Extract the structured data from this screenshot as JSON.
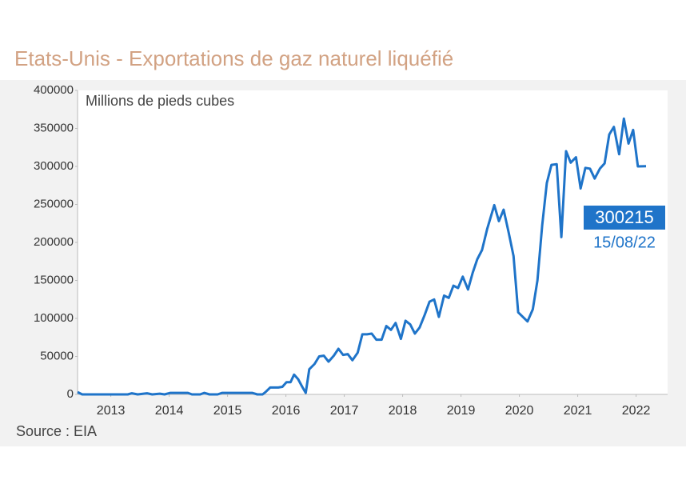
{
  "chart_data": {
    "type": "line",
    "title": "Etats-Unis - Exportations de gaz naturel liquéfié",
    "y_label": "Millions de pieds cubes",
    "source": "Source : EIA",
    "annotation_date": "15/08/22",
    "xlim": [
      2012.93,
      2023.04
    ],
    "xticks": [
      {
        "value": 2013.5,
        "label": "2013"
      },
      {
        "value": 2014.5,
        "label": "2014"
      },
      {
        "value": 2015.5,
        "label": "2015"
      },
      {
        "value": 2016.5,
        "label": "2016"
      },
      {
        "value": 2017.5,
        "label": "2017"
      },
      {
        "value": 2018.5,
        "label": "2018"
      },
      {
        "value": 2019.5,
        "label": "2019"
      },
      {
        "value": 2020.5,
        "label": "2020"
      },
      {
        "value": 2021.5,
        "label": "2021"
      },
      {
        "value": 2022.5,
        "label": "2022"
      }
    ],
    "ylim": [
      0,
      400000
    ],
    "yticks": [
      0,
      50000,
      100000,
      150000,
      200000,
      250000,
      300000,
      350000,
      400000
    ],
    "x": [
      2012.93,
      2013.01,
      2013.79,
      2013.86,
      2013.96,
      2014.12,
      2014.21,
      2014.34,
      2014.42,
      2014.52,
      2014.82,
      2014.89,
      2015.03,
      2015.1,
      2015.19,
      2015.33,
      2015.41,
      2015.92,
      2016.01,
      2016.1,
      2016.15,
      2016.23,
      2016.37,
      2016.44,
      2016.51,
      2016.58,
      2016.64,
      2016.71,
      2016.78,
      2016.84,
      2016.9,
      2016.99,
      2017.07,
      2017.15,
      2017.23,
      2017.32,
      2017.4,
      2017.48,
      2017.56,
      2017.64,
      2017.73,
      2017.81,
      2017.89,
      2017.97,
      2018.05,
      2018.14,
      2018.22,
      2018.3,
      2018.38,
      2018.47,
      2018.55,
      2018.63,
      2018.71,
      2018.79,
      2018.88,
      2018.96,
      2019.04,
      2019.12,
      2019.21,
      2019.29,
      2019.37,
      2019.45,
      2019.53,
      2019.62,
      2019.7,
      2019.78,
      2019.86,
      2019.95,
      2020.07,
      2020.15,
      2020.23,
      2020.32,
      2020.4,
      2020.48,
      2020.64,
      2020.73,
      2020.81,
      2020.89,
      2020.97,
      2021.05,
      2021.14,
      2021.22,
      2021.3,
      2021.38,
      2021.47,
      2021.55,
      2021.63,
      2021.71,
      2021.79,
      2021.88,
      2021.96,
      2022.04,
      2022.12,
      2022.21,
      2022.29,
      2022.37,
      2022.45,
      2022.53,
      2022.67
    ],
    "series": [
      {
        "color": "#1f74c9",
        "values": [
          3000,
          0,
          0,
          1500,
          0,
          1500,
          0,
          1000,
          0,
          2000,
          2000,
          0,
          0,
          2000,
          0,
          0,
          2000,
          2000,
          0,
          0,
          3000,
          9000,
          9000,
          10000,
          16000,
          16000,
          26000,
          20000,
          10000,
          2000,
          33000,
          40000,
          50000,
          51000,
          43000,
          51000,
          60000,
          52000,
          53000,
          45000,
          55000,
          79000,
          79000,
          80000,
          72000,
          72000,
          90000,
          85000,
          94000,
          73000,
          97000,
          92000,
          80000,
          88000,
          105000,
          122000,
          125000,
          102000,
          130000,
          127000,
          143000,
          140000,
          155000,
          138000,
          160000,
          178000,
          190000,
          218000,
          249000,
          228000,
          243000,
          212000,
          182000,
          108000,
          96000,
          112000,
          150000,
          222000,
          278000,
          302000,
          303000,
          207000,
          320000,
          305000,
          312000,
          271000,
          298000,
          297000,
          284000,
          297000,
          304000,
          342000,
          352000,
          316000,
          363000,
          330000,
          348000,
          300000,
          300215
        ]
      }
    ]
  }
}
